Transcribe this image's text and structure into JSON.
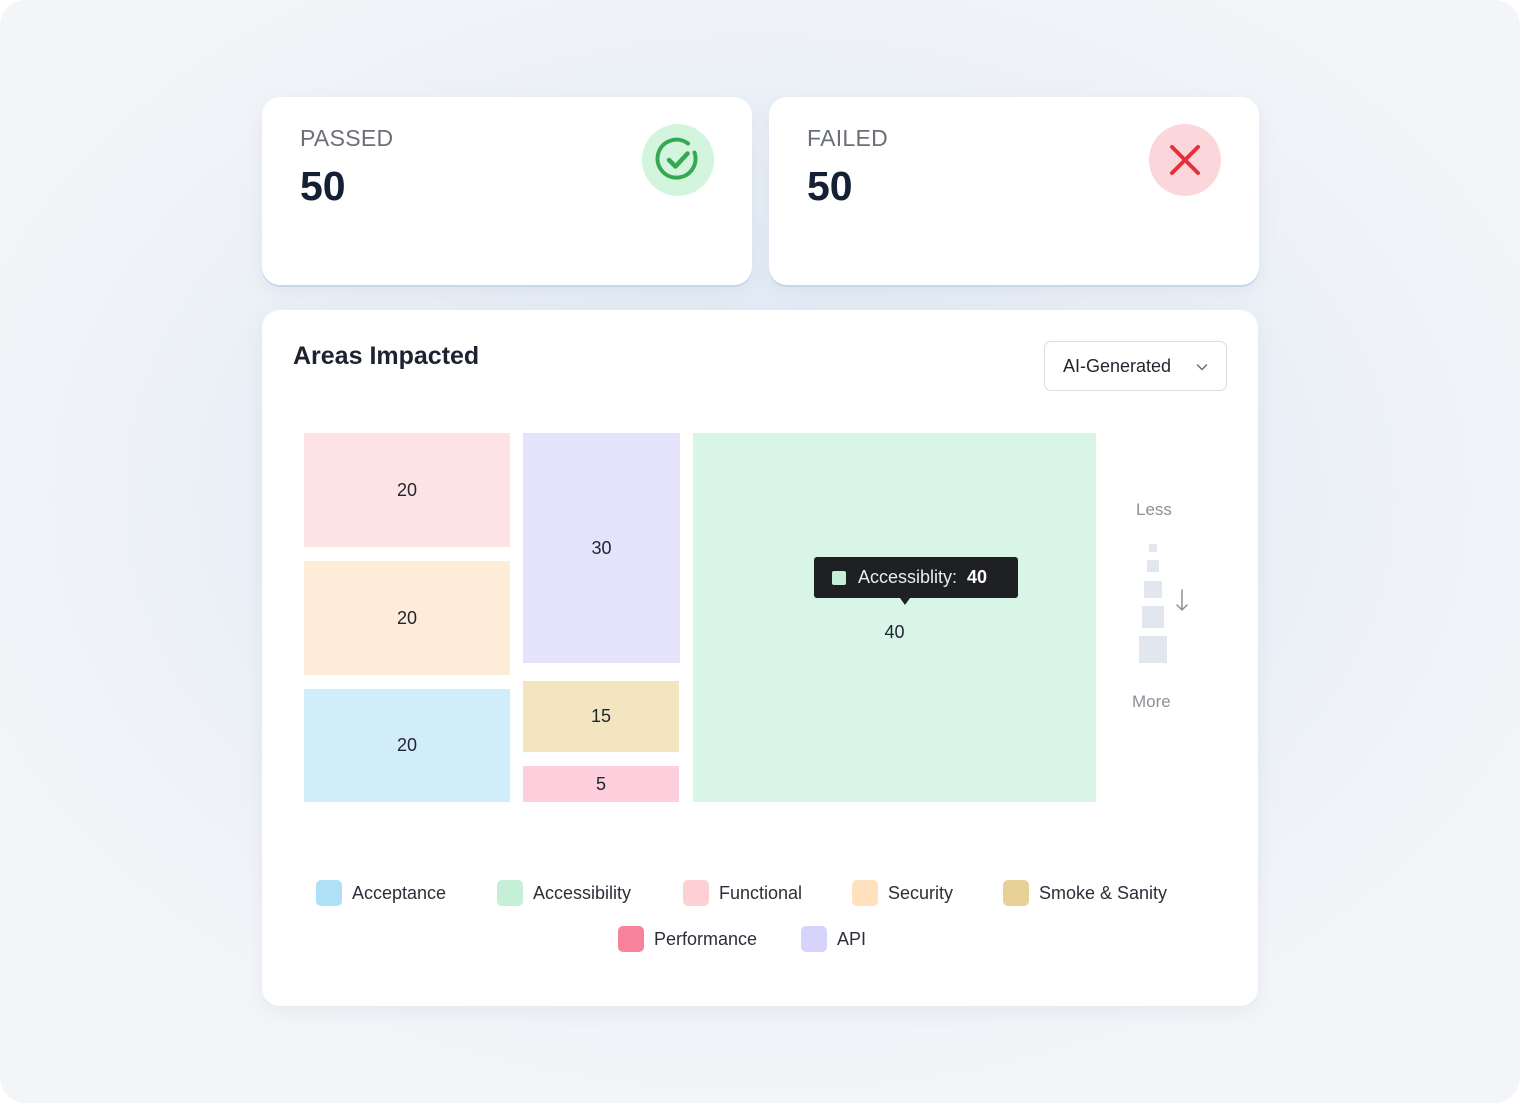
{
  "stats": {
    "passed": {
      "label": "PASSED",
      "value": "50",
      "icon": "check-circle-icon",
      "color": "#34a853"
    },
    "failed": {
      "label": "FAILED",
      "value": "50",
      "icon": "x-icon",
      "color": "#e5303f"
    }
  },
  "areas": {
    "title": "Areas Impacted",
    "dropdown": {
      "selected": "AI-Generated",
      "icon": "chevron-down-icon"
    },
    "tooltip": {
      "name": "Accessiblity:",
      "value": "40"
    },
    "scale": {
      "less_label": "Less",
      "more_label": "More"
    },
    "legend": [
      {
        "label": "Acceptance",
        "color": "#aee0f8"
      },
      {
        "label": "Accessibility",
        "color": "#c6efd8"
      },
      {
        "label": "Functional",
        "color": "#fdd1d3"
      },
      {
        "label": "Security",
        "color": "#ffe2bd"
      },
      {
        "label": "Smoke & Sanity",
        "color": "#e8d197"
      },
      {
        "label": "Performance",
        "color": "#f6829c"
      },
      {
        "label": "API",
        "color": "#d6d4fa"
      }
    ]
  },
  "chart_data": {
    "type": "treemap",
    "title": "Areas Impacted",
    "tiles": [
      {
        "category": "Functional",
        "value": 20,
        "color": "#fde3e3"
      },
      {
        "category": "Security",
        "value": 20,
        "color": "#fdecd8"
      },
      {
        "category": "Acceptance",
        "value": 20,
        "color": "#d1edfa"
      },
      {
        "category": "API",
        "value": 30,
        "color": "#e5e3fc"
      },
      {
        "category": "Smoke & Sanity",
        "value": 15,
        "color": "#f2e5c0"
      },
      {
        "category": "Performance",
        "value": 5,
        "color": "#fdcfdc"
      },
      {
        "category": "Accessibility",
        "value": 40,
        "color": "#d9f5e7"
      }
    ],
    "legend_position": "bottom"
  }
}
